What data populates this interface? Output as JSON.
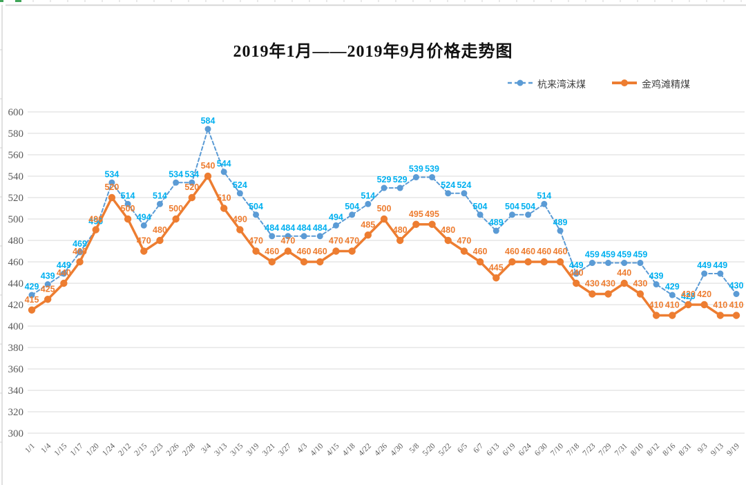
{
  "chart_data": {
    "type": "line",
    "title": "2019年1月——2019年9月价格走势图",
    "categories": [
      "1/1",
      "1/4",
      "1/15",
      "1/17",
      "1/20",
      "1/24",
      "2/12",
      "2/15",
      "2/23",
      "2/26",
      "2/28",
      "3/4",
      "3/13",
      "3/15",
      "3/19",
      "3/21",
      "3/27",
      "4/3",
      "4/10",
      "4/15",
      "4/18",
      "4/22",
      "4/26",
      "4/30",
      "5/8",
      "5/20",
      "5/22",
      "6/5",
      "6/7",
      "6/13",
      "6/19",
      "6/24",
      "6/30",
      "7/10",
      "7/18",
      "7/23",
      "7/29",
      "7/31",
      "8/10",
      "8/12",
      "8/16",
      "8/31",
      "9/3",
      "9/13",
      "9/19"
    ],
    "series": [
      {
        "name": "杭来湾沫煤",
        "style": "dashed",
        "line_color": "#5B9BD5",
        "label_color": "#00B0F0",
        "values": [
          429,
          439,
          449,
          469,
          490,
          534,
          514,
          494,
          514,
          534,
          534,
          584,
          544,
          524,
          504,
          484,
          484,
          484,
          484,
          494,
          504,
          514,
          529,
          529,
          539,
          539,
          524,
          524,
          504,
          489,
          504,
          504,
          514,
          489,
          449,
          459,
          459,
          459,
          459,
          439,
          429,
          420,
          449,
          449,
          430
        ]
      },
      {
        "name": "金鸡滩精煤",
        "style": "solid",
        "line_color": "#ED7D31",
        "label_color": "#ED7D31",
        "values": [
          415,
          425,
          440,
          460,
          490,
          520,
          500,
          470,
          480,
          500,
          520,
          540,
          510,
          490,
          470,
          460,
          470,
          460,
          460,
          470,
          470,
          485,
          500,
          480,
          495,
          495,
          480,
          470,
          460,
          445,
          460,
          460,
          460,
          460,
          440,
          430,
          430,
          440,
          430,
          410,
          410,
          420,
          420,
          410,
          410
        ]
      }
    ],
    "ylim": [
      300,
      600
    ],
    "ytick_step": 20,
    "yticks": [
      300,
      320,
      340,
      360,
      380,
      400,
      420,
      440,
      460,
      480,
      500,
      520,
      540,
      560,
      580,
      600
    ],
    "grid": true,
    "legend_position": "top-right",
    "data_labels": true,
    "axis_text_color": "#595959",
    "gridline_color": "#D9D9D9"
  }
}
